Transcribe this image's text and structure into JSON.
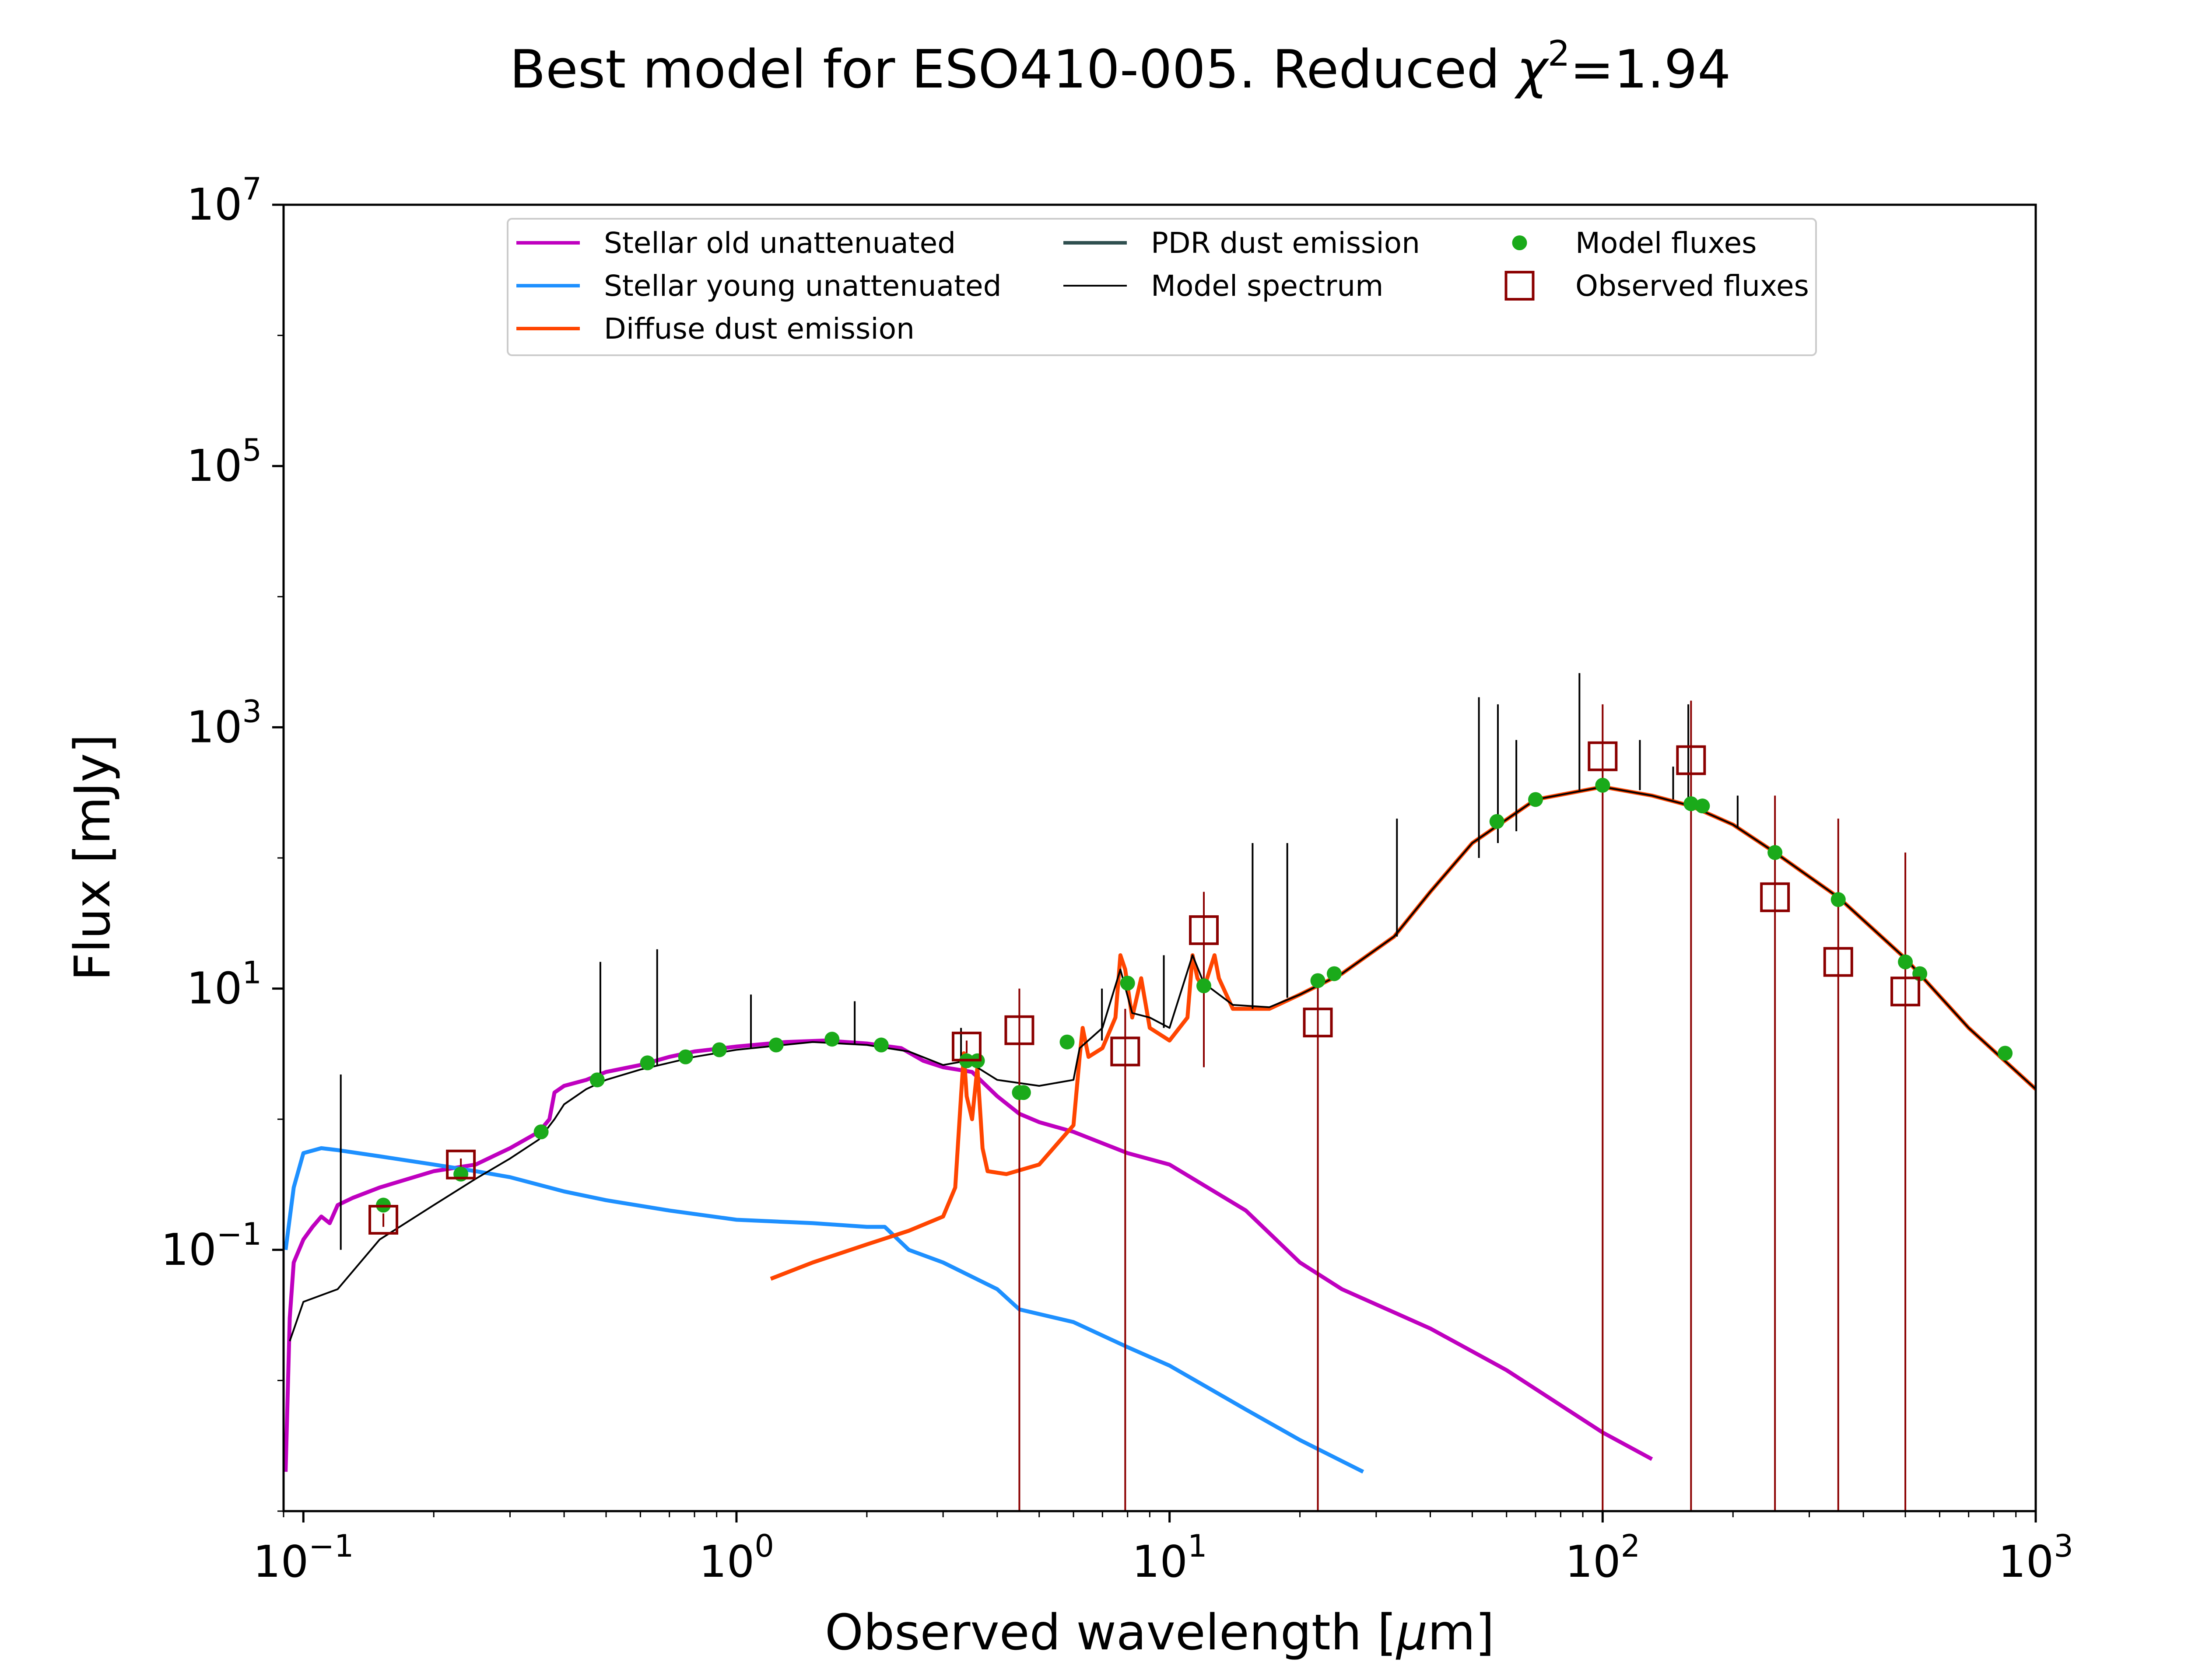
{
  "chart_data": {
    "type": "line",
    "title": {
      "prefix": "Best model for ESO410-005. Reduced ",
      "chi": "χ",
      "chi_sup": "2",
      "suffix": "=1.94"
    },
    "xlabel": {
      "prefix": "Observed wavelength [",
      "mu": "μ",
      "suffix": "m]"
    },
    "ylabel": "Flux [mJy]",
    "x_scale": "log",
    "y_scale": "log",
    "xlim": [
      0.09,
      1000
    ],
    "ylim": [
      0.001,
      10000000
    ],
    "x_ticks": [
      {
        "value": 0.1,
        "base": "10",
        "exp": "−1"
      },
      {
        "value": 1,
        "base": "10",
        "exp": "0"
      },
      {
        "value": 10,
        "base": "10",
        "exp": "1"
      },
      {
        "value": 100,
        "base": "10",
        "exp": "2"
      },
      {
        "value": 1000,
        "base": "10",
        "exp": "3"
      }
    ],
    "y_ticks": [
      {
        "value": 0.1,
        "base": "10",
        "exp": "−1"
      },
      {
        "value": 10,
        "base": "10",
        "exp": "1"
      },
      {
        "value": 1000,
        "base": "10",
        "exp": "3"
      },
      {
        "value": 100000,
        "base": "10",
        "exp": "5"
      },
      {
        "value": 10000000,
        "base": "10",
        "exp": "7"
      }
    ],
    "grid": false,
    "legend": {
      "placement": "top-center",
      "entries": [
        {
          "label": "Stellar old unattenuated",
          "kind": "line",
          "color": "#bf00bf"
        },
        {
          "label": "Stellar young unattenuated",
          "kind": "line",
          "color": "#1e90ff"
        },
        {
          "label": "Diffuse dust emission",
          "kind": "line",
          "color": "#ff4500"
        },
        {
          "label": "PDR dust emission",
          "kind": "line",
          "color": "#2f4f4f"
        },
        {
          "label": "Model spectrum",
          "kind": "thinline",
          "color": "#000000"
        },
        {
          "label": "Model fluxes",
          "kind": "dot",
          "color": "#1aaa1a"
        },
        {
          "label": "Observed fluxes",
          "kind": "square",
          "color": "#8b0000"
        }
      ]
    },
    "series": [
      {
        "name": "Stellar old unattenuated",
        "color": "#bf00bf",
        "points": [
          [
            0.091,
            0.002
          ],
          [
            0.093,
            0.03
          ],
          [
            0.095,
            0.08
          ],
          [
            0.1,
            0.12
          ],
          [
            0.105,
            0.15
          ],
          [
            0.11,
            0.18
          ],
          [
            0.115,
            0.16
          ],
          [
            0.12,
            0.22
          ],
          [
            0.13,
            0.25
          ],
          [
            0.15,
            0.3
          ],
          [
            0.2,
            0.4
          ],
          [
            0.25,
            0.45
          ],
          [
            0.3,
            0.6
          ],
          [
            0.35,
            0.8
          ],
          [
            0.37,
            1.0
          ],
          [
            0.38,
            1.6
          ],
          [
            0.4,
            1.8
          ],
          [
            0.45,
            2.0
          ],
          [
            0.5,
            2.3
          ],
          [
            0.6,
            2.6
          ],
          [
            0.7,
            3.0
          ],
          [
            0.8,
            3.3
          ],
          [
            1.0,
            3.6
          ],
          [
            1.3,
            3.9
          ],
          [
            1.6,
            4.0
          ],
          [
            2.0,
            3.8
          ],
          [
            2.4,
            3.5
          ],
          [
            2.7,
            2.8
          ],
          [
            3.0,
            2.5
          ],
          [
            3.5,
            2.3
          ],
          [
            4.0,
            1.5
          ],
          [
            4.5,
            1.1
          ],
          [
            5.0,
            0.95
          ],
          [
            6.0,
            0.8
          ],
          [
            8.0,
            0.55
          ],
          [
            10.0,
            0.45
          ],
          [
            15.0,
            0.2
          ],
          [
            20.0,
            0.08
          ],
          [
            25.0,
            0.05
          ],
          [
            40.0,
            0.025
          ],
          [
            60.0,
            0.012
          ],
          [
            100.0,
            0.004
          ],
          [
            130.0,
            0.0025
          ]
        ]
      },
      {
        "name": "Stellar young unattenuated",
        "color": "#1e90ff",
        "points": [
          [
            0.091,
            0.1
          ],
          [
            0.095,
            0.3
          ],
          [
            0.1,
            0.55
          ],
          [
            0.11,
            0.6
          ],
          [
            0.12,
            0.58
          ],
          [
            0.15,
            0.52
          ],
          [
            0.2,
            0.45
          ],
          [
            0.25,
            0.4
          ],
          [
            0.3,
            0.36
          ],
          [
            0.4,
            0.28
          ],
          [
            0.5,
            0.24
          ],
          [
            0.7,
            0.2
          ],
          [
            1.0,
            0.17
          ],
          [
            1.5,
            0.16
          ],
          [
            2.0,
            0.15
          ],
          [
            2.2,
            0.15
          ],
          [
            2.5,
            0.1
          ],
          [
            3.0,
            0.08
          ],
          [
            4.0,
            0.05
          ],
          [
            4.5,
            0.035
          ],
          [
            6.0,
            0.028
          ],
          [
            8.0,
            0.018
          ],
          [
            10.0,
            0.013
          ],
          [
            15.0,
            0.006
          ],
          [
            20.0,
            0.0035
          ],
          [
            28.0,
            0.002
          ]
        ]
      },
      {
        "name": "Diffuse dust emission",
        "color": "#ff4500",
        "points": [
          [
            1.2,
            0.06
          ],
          [
            1.5,
            0.08
          ],
          [
            2.0,
            0.11
          ],
          [
            2.5,
            0.14
          ],
          [
            3.0,
            0.18
          ],
          [
            3.2,
            0.3
          ],
          [
            3.3,
            1.5
          ],
          [
            3.35,
            3.2
          ],
          [
            3.4,
            1.5
          ],
          [
            3.5,
            1.0
          ],
          [
            3.6,
            2.5
          ],
          [
            3.7,
            0.6
          ],
          [
            3.8,
            0.4
          ],
          [
            4.2,
            0.38
          ],
          [
            5.0,
            0.45
          ],
          [
            6.0,
            0.9
          ],
          [
            6.2,
            3.0
          ],
          [
            6.3,
            5.0
          ],
          [
            6.5,
            3.0
          ],
          [
            7.0,
            3.5
          ],
          [
            7.5,
            6.0
          ],
          [
            7.7,
            18.0
          ],
          [
            7.9,
            14.0
          ],
          [
            8.2,
            6.0
          ],
          [
            8.6,
            12.0
          ],
          [
            9.0,
            5.0
          ],
          [
            10.0,
            4.0
          ],
          [
            11.0,
            6.0
          ],
          [
            11.3,
            18.0
          ],
          [
            11.6,
            12.0
          ],
          [
            12.0,
            10.0
          ],
          [
            12.7,
            18.0
          ],
          [
            13.0,
            12.0
          ],
          [
            14.0,
            7.0
          ],
          [
            17.0,
            7.0
          ],
          [
            20.0,
            9.0
          ],
          [
            25.0,
            13.0
          ],
          [
            33.0,
            25.0
          ],
          [
            40.0,
            55.0
          ],
          [
            50.0,
            130.0
          ],
          [
            70.0,
            280.0
          ],
          [
            100.0,
            350.0
          ],
          [
            130.0,
            300.0
          ],
          [
            160.0,
            250.0
          ],
          [
            200.0,
            180.0
          ],
          [
            250.0,
            110.0
          ],
          [
            350.0,
            50.0
          ],
          [
            500.0,
            17.0
          ],
          [
            700.0,
            5.0
          ],
          [
            1000.0,
            1.7
          ]
        ]
      },
      {
        "name": "Model spectrum",
        "color": "#000000",
        "points": [
          [
            0.093,
            0.02
          ],
          [
            0.1,
            0.04
          ],
          [
            0.12,
            0.05
          ],
          [
            0.15,
            0.12
          ],
          [
            0.2,
            0.22
          ],
          [
            0.25,
            0.35
          ],
          [
            0.3,
            0.5
          ],
          [
            0.35,
            0.7
          ],
          [
            0.38,
            1.0
          ],
          [
            0.4,
            1.3
          ],
          [
            0.45,
            1.7
          ],
          [
            0.5,
            2.0
          ],
          [
            0.6,
            2.4
          ],
          [
            0.8,
            3.0
          ],
          [
            1.0,
            3.4
          ],
          [
            1.5,
            3.9
          ],
          [
            2.0,
            3.7
          ],
          [
            2.5,
            3.3
          ],
          [
            3.0,
            2.6
          ],
          [
            3.4,
            2.8
          ],
          [
            4.0,
            2.0
          ],
          [
            5.0,
            1.8
          ],
          [
            6.0,
            2.0
          ],
          [
            6.2,
            3.5
          ],
          [
            7.0,
            5.0
          ],
          [
            7.7,
            14.0
          ],
          [
            8.2,
            6.5
          ],
          [
            9.0,
            6.0
          ],
          [
            10.0,
            5.0
          ],
          [
            11.3,
            18.0
          ],
          [
            12.0,
            11.0
          ],
          [
            14.0,
            7.5
          ],
          [
            17.0,
            7.2
          ],
          [
            20.0,
            9.0
          ],
          [
            25.0,
            13.0
          ],
          [
            33.0,
            25.0
          ],
          [
            40.0,
            55.0
          ],
          [
            50.0,
            130.0
          ],
          [
            70.0,
            280.0
          ],
          [
            100.0,
            350.0
          ],
          [
            130.0,
            300.0
          ],
          [
            160.0,
            250.0
          ],
          [
            200.0,
            180.0
          ],
          [
            250.0,
            110.0
          ],
          [
            350.0,
            50.0
          ],
          [
            500.0,
            17.0
          ],
          [
            700.0,
            5.0
          ],
          [
            1000.0,
            1.7
          ]
        ]
      }
    ],
    "spectrum_lines": [
      {
        "x": 0.122,
        "y0": 0.1,
        "y1": 2.2
      },
      {
        "x": 0.485,
        "y0": 1.8,
        "y1": 16
      },
      {
        "x": 0.656,
        "y0": 2.6,
        "y1": 20
      },
      {
        "x": 1.08,
        "y0": 3.5,
        "y1": 9
      },
      {
        "x": 1.875,
        "y0": 3.8,
        "y1": 8
      },
      {
        "x": 3.3,
        "y0": 2.8,
        "y1": 5
      },
      {
        "x": 6.98,
        "y0": 4,
        "y1": 10
      },
      {
        "x": 9.7,
        "y0": 5,
        "y1": 18
      },
      {
        "x": 15.55,
        "y0": 7,
        "y1": 130
      },
      {
        "x": 18.7,
        "y0": 8.5,
        "y1": 130
      },
      {
        "x": 33.5,
        "y0": 25,
        "y1": 200
      },
      {
        "x": 51.8,
        "y0": 100,
        "y1": 1700
      },
      {
        "x": 57.3,
        "y0": 130,
        "y1": 1500
      },
      {
        "x": 63.2,
        "y0": 160,
        "y1": 800
      },
      {
        "x": 88.4,
        "y0": 330,
        "y1": 2600
      },
      {
        "x": 121.9,
        "y0": 330,
        "y1": 800
      },
      {
        "x": 145.5,
        "y0": 280,
        "y1": 500
      },
      {
        "x": 157.7,
        "y0": 255,
        "y1": 1500
      },
      {
        "x": 205.0,
        "y0": 170,
        "y1": 300
      }
    ],
    "model_fluxes": [
      [
        0.153,
        0.22
      ],
      [
        0.231,
        0.38
      ],
      [
        0.354,
        0.8
      ],
      [
        0.477,
        2.0
      ],
      [
        0.623,
        2.7
      ],
      [
        0.763,
        3.0
      ],
      [
        0.913,
        3.4
      ],
      [
        1.235,
        3.7
      ],
      [
        1.662,
        4.1
      ],
      [
        2.159,
        3.7
      ],
      [
        3.4,
        2.8
      ],
      [
        3.6,
        2.8
      ],
      [
        4.5,
        1.6
      ],
      [
        4.6,
        1.6
      ],
      [
        5.8,
        3.9
      ],
      [
        8.0,
        11.0
      ],
      [
        12.0,
        10.5
      ],
      [
        22.0,
        11.5
      ],
      [
        24.0,
        13.0
      ],
      [
        57.0,
        190
      ],
      [
        70.0,
        280
      ],
      [
        100.0,
        360
      ],
      [
        160.0,
        260
      ],
      [
        170.0,
        250
      ],
      [
        250.0,
        110
      ],
      [
        350.0,
        48
      ],
      [
        500.0,
        16
      ],
      [
        540.0,
        13
      ],
      [
        850.0,
        3.2
      ]
    ],
    "observed_fluxes": [
      {
        "x": 0.153,
        "y": 0.17,
        "y_lo": 0.15,
        "y_hi": 0.19
      },
      {
        "x": 0.231,
        "y": 0.45,
        "y_lo": 0.4,
        "y_hi": 0.5
      },
      {
        "x": 3.4,
        "y": 3.6,
        "y_lo": 3.2,
        "y_hi": 4.0
      },
      {
        "x": 4.5,
        "y": 4.8,
        "y_lo": 0.001,
        "y_hi": 10
      },
      {
        "x": 7.9,
        "y": 3.3,
        "y_lo": 0.001,
        "y_hi": 7
      },
      {
        "x": 12.0,
        "y": 28,
        "y_lo": 2.5,
        "y_hi": 55
      },
      {
        "x": 22.0,
        "y": 5.5,
        "y_lo": 0.001,
        "y_hi": 12
      },
      {
        "x": 100.0,
        "y": 600,
        "y_lo": 0.001,
        "y_hi": 1500
      },
      {
        "x": 160.0,
        "y": 560,
        "y_lo": 0.001,
        "y_hi": 1600
      },
      {
        "x": 250.0,
        "y": 50,
        "y_lo": 0.001,
        "y_hi": 300
      },
      {
        "x": 350.0,
        "y": 16,
        "y_lo": 0.001,
        "y_hi": 200
      },
      {
        "x": 500.0,
        "y": 9.5,
        "y_lo": 0.001,
        "y_hi": 110
      }
    ],
    "colors": {
      "model_flux": "#1aaa1a",
      "observed_flux": "#8b0000",
      "spectrum": "#000000"
    }
  }
}
